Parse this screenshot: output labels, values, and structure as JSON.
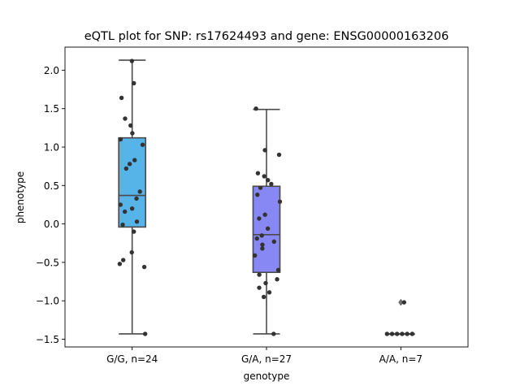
{
  "chart_data": {
    "type": "box",
    "title": "eQTL plot for SNP: rs17624493 and gene: ENSG00000163206",
    "xlabel": "genotype",
    "ylabel": "phenotype",
    "ylim": [
      -1.6,
      2.3
    ],
    "yticks": [
      -1.5,
      -1.0,
      -0.5,
      0.0,
      0.5,
      1.0,
      1.5,
      2.0
    ],
    "ytick_labels": [
      "−1.5",
      "−1.0",
      "−0.5",
      "0.0",
      "0.5",
      "1.0",
      "1.5",
      "2.0"
    ],
    "grid": false,
    "categories": [
      "G/G, n=24",
      "G/A, n=27",
      "A/A, n=7"
    ],
    "groups": [
      {
        "label": "G/G, n=24",
        "color": "#56B4E9",
        "box": {
          "q1": -0.04,
          "median": 0.37,
          "q3": 1.12,
          "whisker_low": -1.43,
          "whisker_high": 2.13
        },
        "outliers": [],
        "points": [
          2.12,
          1.83,
          1.64,
          1.37,
          1.28,
          1.18,
          1.1,
          1.03,
          0.83,
          0.78,
          0.72,
          0.42,
          0.33,
          0.25,
          0.2,
          0.16,
          0.03,
          -0.01,
          -0.1,
          -0.37,
          -0.47,
          -0.52,
          -0.56,
          -1.43
        ]
      },
      {
        "label": "G/A, n=27",
        "color": "#8888F5",
        "box": {
          "q1": -0.63,
          "median": -0.14,
          "q3": 0.49,
          "whisker_low": -1.43,
          "whisker_high": 1.49
        },
        "outliers": [],
        "points": [
          1.5,
          0.96,
          0.9,
          0.66,
          0.62,
          0.57,
          0.52,
          0.47,
          0.38,
          0.29,
          0.12,
          0.07,
          -0.06,
          -0.15,
          -0.19,
          -0.23,
          -0.27,
          -0.32,
          -0.41,
          -0.6,
          -0.66,
          -0.72,
          -0.77,
          -0.83,
          -0.89,
          -0.95,
          -1.43
        ]
      },
      {
        "label": "A/A, n=7",
        "color": "#AA77EE",
        "box": {
          "q1": -1.43,
          "median": -1.43,
          "q3": -1.43,
          "whisker_low": -1.43,
          "whisker_high": -1.43
        },
        "outliers": [
          -1.02
        ],
        "points": [
          -1.02,
          -1.43,
          -1.43,
          -1.43,
          -1.43,
          -1.43,
          -1.43
        ]
      }
    ]
  }
}
